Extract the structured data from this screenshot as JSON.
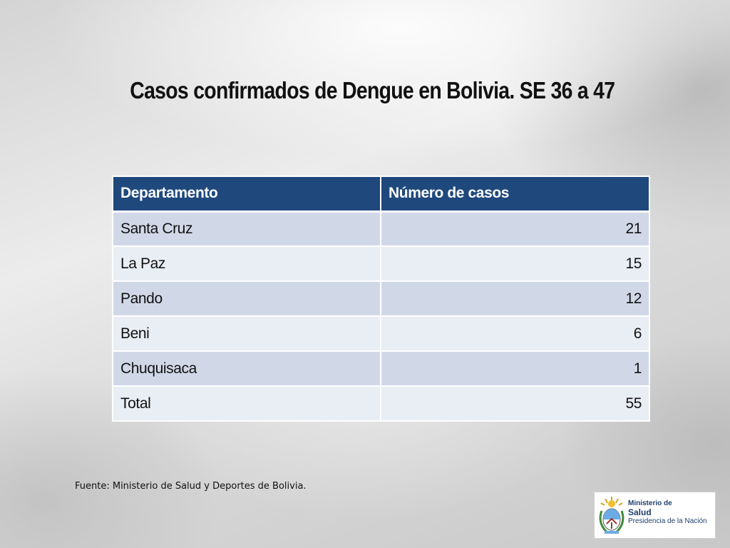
{
  "slide": {
    "title": "Casos confirmados de Dengue en Bolivia. SE 36 a 47"
  },
  "table": {
    "headers": [
      "Departamento",
      "Número de casos"
    ],
    "rows": [
      {
        "departamento": "Santa Cruz",
        "casos": "21"
      },
      {
        "departamento": "La Paz",
        "casos": "15"
      },
      {
        "departamento": "Pando",
        "casos": "12"
      },
      {
        "departamento": "Beni",
        "casos": "6"
      },
      {
        "departamento": "Chuquisaca",
        "casos": "1"
      },
      {
        "departamento": "Total",
        "casos": "55"
      }
    ]
  },
  "footer": {
    "source": "Fuente: Ministerio de Salud y Deportes de Bolivia."
  },
  "logo": {
    "line1": "Ministerio de",
    "line2": "Salud",
    "line3": "Presidencia de la Nación",
    "icon": "argentina-coat-of-arms-icon"
  },
  "colors": {
    "header_bg": "#1f497d",
    "row_odd": "#d0d8e8",
    "row_even": "#e9edf4",
    "logo_text": "#1f3f6e"
  }
}
